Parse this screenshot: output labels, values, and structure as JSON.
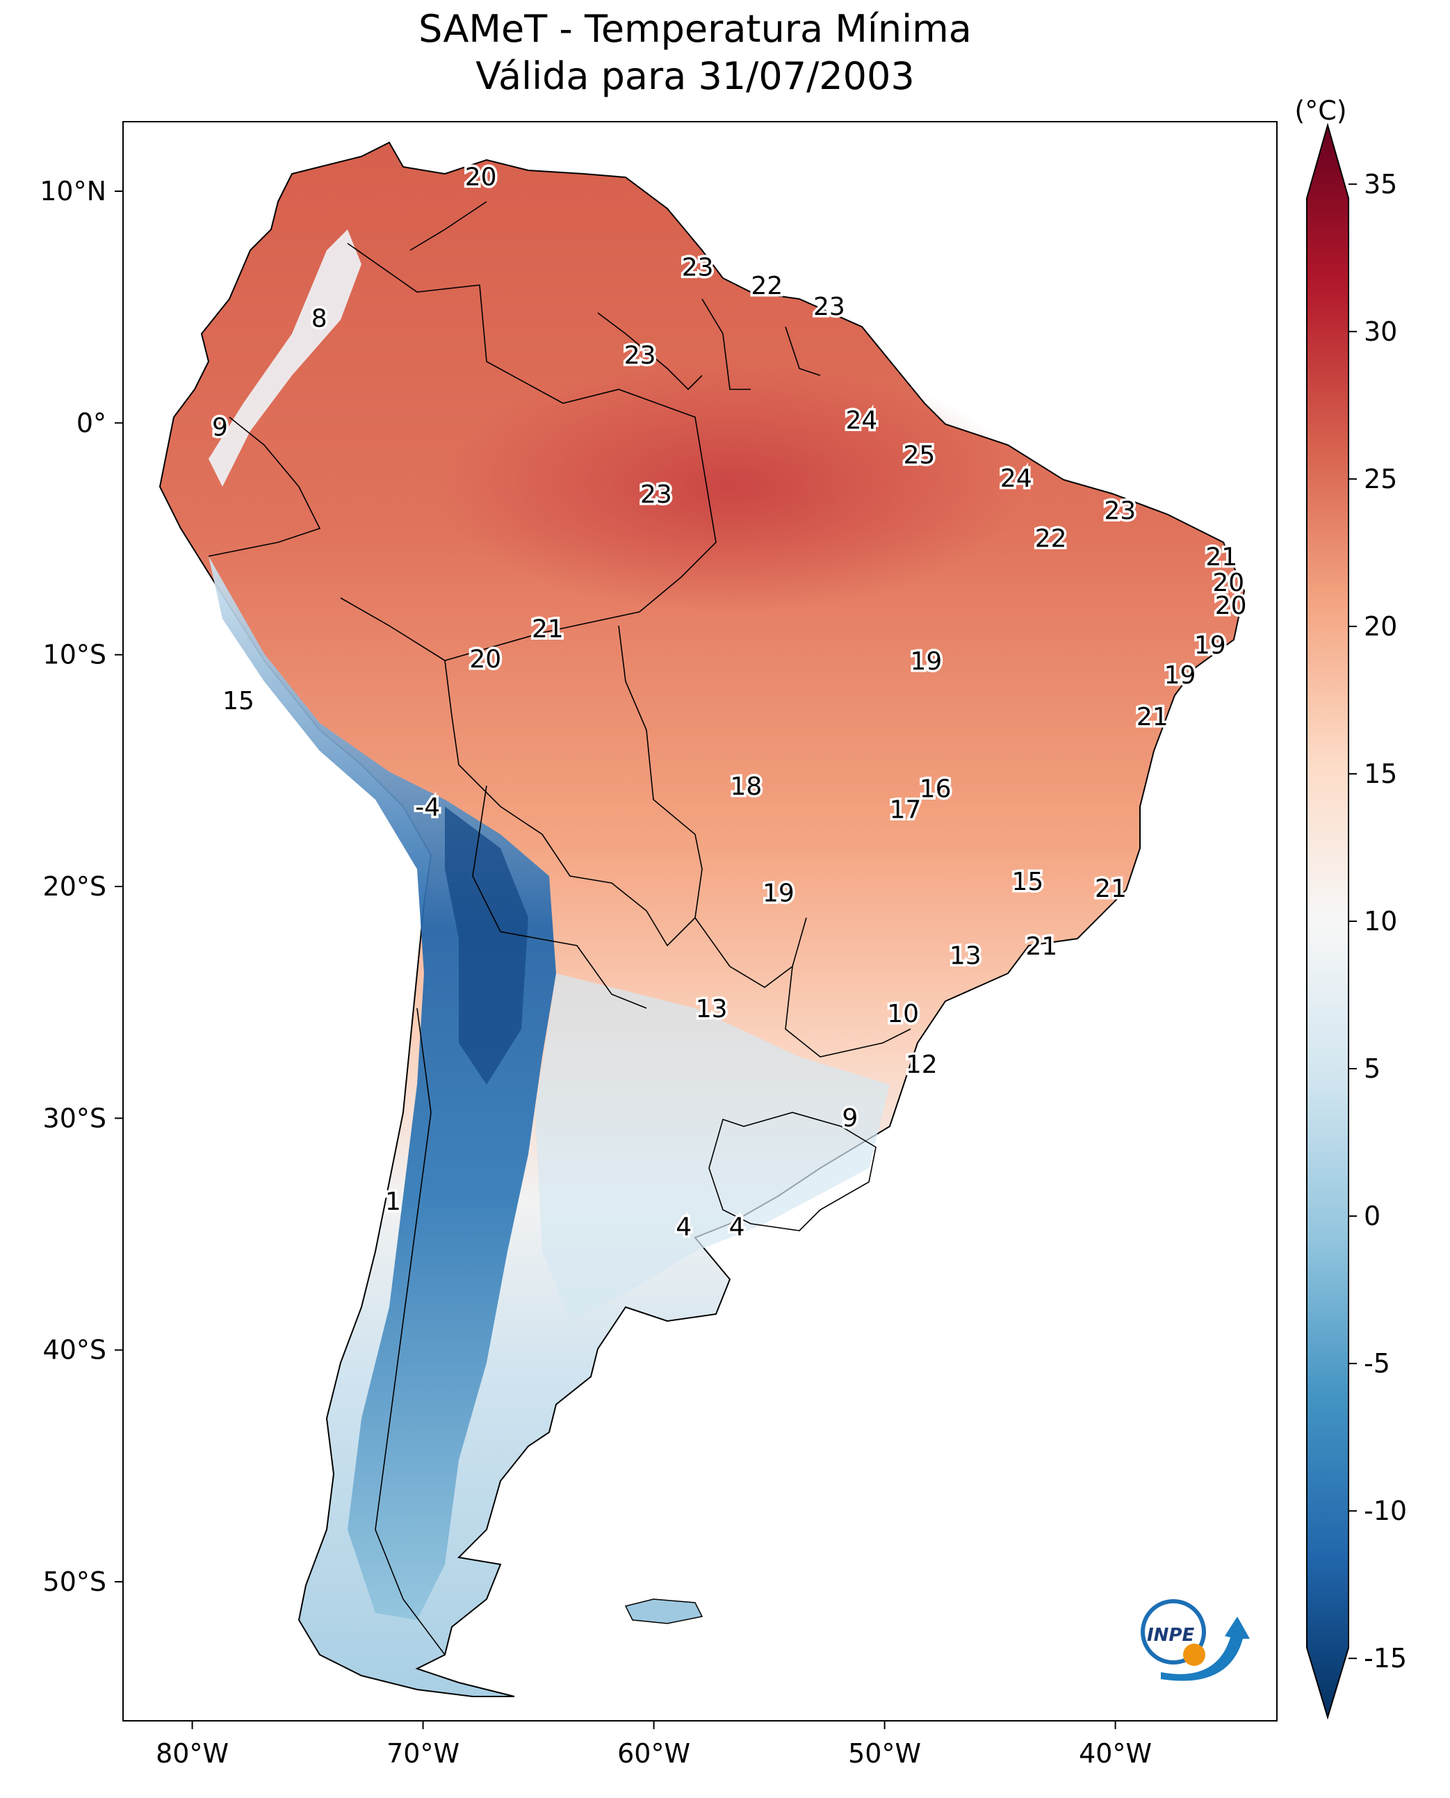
{
  "title": {
    "line1": "SAMeT - Temperatura Mínima",
    "line2": "Válida para 31/07/2003"
  },
  "colorbar": {
    "unit": "(°C)",
    "ticks": [
      "35",
      "30",
      "25",
      "20",
      "15",
      "10",
      "5",
      "0",
      "-5",
      "-10",
      "-15"
    ],
    "range": [
      -17,
      37
    ],
    "colors": [
      "#053061",
      "#2166ac",
      "#4393c3",
      "#92c5de",
      "#d1e5f0",
      "#f7f7f7",
      "#fddbc7",
      "#f4a582",
      "#d6604d",
      "#b2182b",
      "#67001f"
    ]
  },
  "axes": {
    "lon_ticks": [
      "80°W",
      "70°W",
      "60°W",
      "50°W",
      "40°W"
    ],
    "lat_ticks": [
      "10°N",
      "0°",
      "10°S",
      "20°S",
      "30°S",
      "40°S",
      "50°S"
    ],
    "lon_range": [
      -83,
      -33
    ],
    "lat_range": [
      -56,
      13
    ]
  },
  "labels": [
    {
      "v": "20",
      "lon": -67.5,
      "lat": 10.6
    },
    {
      "v": "8",
      "lon": -74.5,
      "lat": 4.5
    },
    {
      "v": "9",
      "lon": -78.8,
      "lat": -0.2
    },
    {
      "v": "23",
      "lon": -58.1,
      "lat": 6.7
    },
    {
      "v": "22",
      "lon": -55.1,
      "lat": 5.9
    },
    {
      "v": "23",
      "lon": -52.4,
      "lat": 5.0
    },
    {
      "v": "23",
      "lon": -60.6,
      "lat": 2.9
    },
    {
      "v": "24",
      "lon": -51.0,
      "lat": 0.1
    },
    {
      "v": "25",
      "lon": -48.5,
      "lat": -1.4
    },
    {
      "v": "24",
      "lon": -44.3,
      "lat": -2.4
    },
    {
      "v": "23",
      "lon": -59.9,
      "lat": -3.1
    },
    {
      "v": "23",
      "lon": -39.8,
      "lat": -3.8
    },
    {
      "v": "22",
      "lon": -42.8,
      "lat": -5.0
    },
    {
      "v": "21",
      "lon": -35.4,
      "lat": -5.8
    },
    {
      "v": "20",
      "lon": -35.1,
      "lat": -6.9
    },
    {
      "v": "20",
      "lon": -35.0,
      "lat": -7.9
    },
    {
      "v": "21",
      "lon": -64.6,
      "lat": -8.9
    },
    {
      "v": "19",
      "lon": -35.9,
      "lat": -9.6
    },
    {
      "v": "20",
      "lon": -67.3,
      "lat": -10.2
    },
    {
      "v": "19",
      "lon": -48.2,
      "lat": -10.3
    },
    {
      "v": "19",
      "lon": -37.2,
      "lat": -10.9
    },
    {
      "v": "15",
      "lon": -78.0,
      "lat": -12.0
    },
    {
      "v": "21",
      "lon": -38.4,
      "lat": -12.7
    },
    {
      "v": "18",
      "lon": -56.0,
      "lat": -15.7
    },
    {
      "v": "16",
      "lon": -47.8,
      "lat": -15.8
    },
    {
      "v": "17",
      "lon": -49.1,
      "lat": -16.7
    },
    {
      "v": "-4",
      "lon": -69.8,
      "lat": -16.6
    },
    {
      "v": "15",
      "lon": -43.8,
      "lat": -19.8
    },
    {
      "v": "19",
      "lon": -54.6,
      "lat": -20.3
    },
    {
      "v": "21",
      "lon": -40.2,
      "lat": -20.1
    },
    {
      "v": "21",
      "lon": -43.2,
      "lat": -22.6
    },
    {
      "v": "13",
      "lon": -46.5,
      "lat": -23.0
    },
    {
      "v": "13",
      "lon": -57.5,
      "lat": -25.3
    },
    {
      "v": "10",
      "lon": -49.2,
      "lat": -25.5
    },
    {
      "v": "12",
      "lon": -48.4,
      "lat": -27.7
    },
    {
      "v": "9",
      "lon": -51.5,
      "lat": -30.0
    },
    {
      "v": "1",
      "lon": -71.3,
      "lat": -33.6
    },
    {
      "v": "4",
      "lon": -58.7,
      "lat": -34.7
    },
    {
      "v": "4",
      "lon": -56.4,
      "lat": -34.7
    }
  ],
  "logo": {
    "text": "INPE"
  }
}
